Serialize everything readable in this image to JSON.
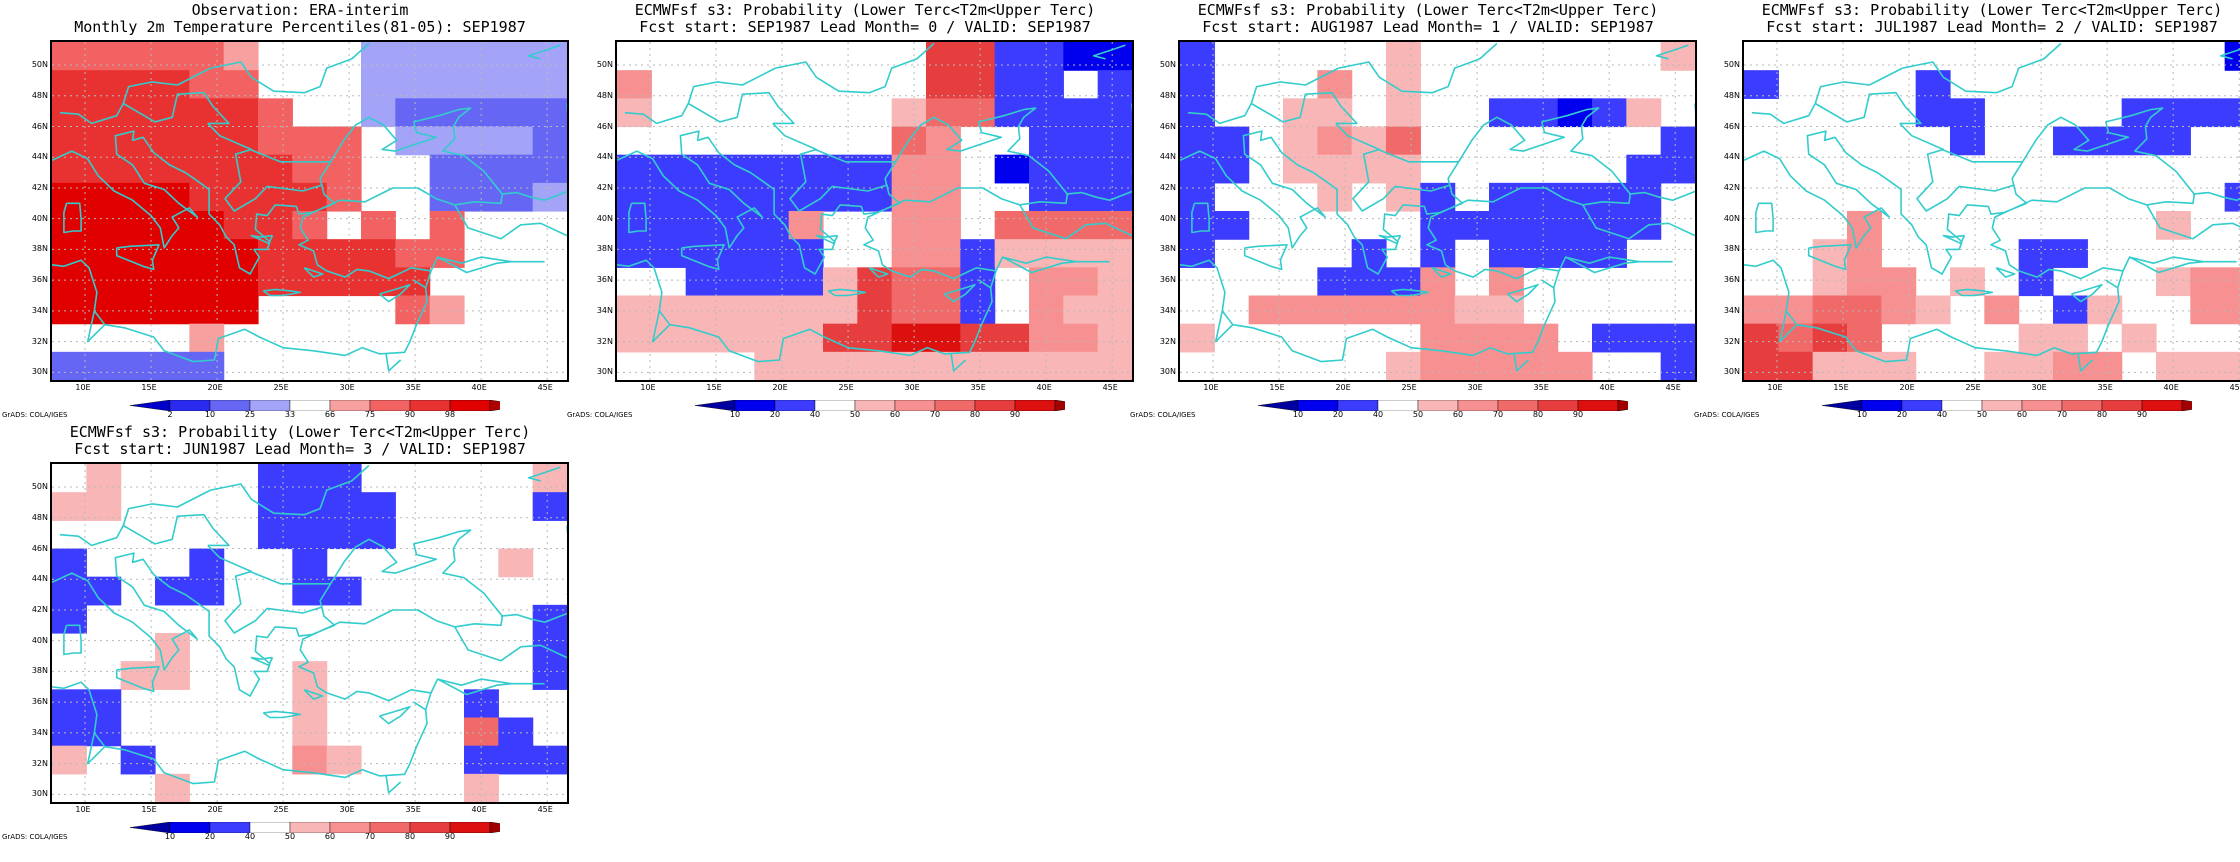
{
  "lon_labels": [
    "10E",
    "15E",
    "20E",
    "25E",
    "30E",
    "35E",
    "40E",
    "45E"
  ],
  "lat_labels": [
    "50N",
    "48N",
    "46N",
    "44N",
    "42N",
    "40N",
    "38N",
    "36N",
    "34N",
    "32N",
    "30N"
  ],
  "credit": "GrADS: COLA/IGES",
  "colors": {
    "coast": "#33cccc",
    "grid": "#b8b8b8",
    "obs_palette": {
      "1": "#2b2bf0",
      "2": "#6666f5",
      "3": "#a3a3f8",
      "4": "#ffffff",
      "5": "#f8a0a0",
      "6": "#f26262",
      "7": "#e83232",
      "8": "#e00000"
    },
    "prob_palette": {
      "0": "#0000ee",
      "1": "#3c3cff",
      "2": "#ffffff",
      "3": "#f9b6b6",
      "4": "#f79090",
      "5": "#f06a6a",
      "6": "#e63e3e",
      "7": "#dd1010"
    }
  },
  "panels": [
    {
      "id": "obs",
      "title_line1": "Observation: ERA-interim",
      "title_line2": "Monthly 2m Temperature Percentiles(81-05): SEP1987",
      "colorbar_labels": [
        "2",
        "10",
        "25",
        "33",
        "66",
        "75",
        "90",
        "98"
      ],
      "palette": "obs",
      "grid": [
        "666665444333333",
        "777766444333333",
        "777777644322222",
        "777777666433332",
        "777777766442222",
        "888877776442223",
        "888887764646444",
        "888888777766444",
        "888888777774444",
        "888888444465444",
        "444454444444444",
        "222224444444444"
      ]
    },
    {
      "id": "lead0",
      "title_line1": "ECMWFsf s3: Probability (Lower Terc<T2m<Upper Terc)",
      "title_line2": "Fcst start: SEP1987  Lead Month= 0 / VALID: SEP1987",
      "colorbar_labels": [
        "10",
        "20",
        "40",
        "50",
        "60",
        "70",
        "80",
        "90"
      ],
      "palette": "prob",
      "grid": [
        "222222222661100",
        "422222222661121",
        "322222223551111",
        "222222225422111",
        "111111114420111",
        "111111114422111",
        "111114224425555",
        "111111224413333",
        "221111365512443",
        "333333365512433",
        "333333667766443",
        "222233333333333"
      ]
    },
    {
      "id": "lead1",
      "title_line1": "ECMWFsf s3: Probability (Lower Terc<T2m<Upper Terc)",
      "title_line2": "Fcst start: AUG1987  Lead Month= 1 / VALID: SEP1987",
      "colorbar_labels": [
        "10",
        "20",
        "40",
        "50",
        "60",
        "70",
        "80",
        "90"
      ],
      "palette": "prob",
      "grid": [
        "122222322222223",
        "122242322222222",
        "122332322110132",
        "112343522222221",
        "112333322222211",
        "122232312111112",
        "112222211111112",
        "122221212111122",
        "222211142422222",
        "224444443322222",
        "322222244442111",
        "222222344444221"
      ]
    },
    {
      "id": "lead2",
      "title_line1": "ECMWFsf s3: Probability (Lower Terc<T2m<Upper Terc)",
      "title_line2": "Fcst start: JUL1987  Lead Month= 2 / VALID: SEP1987",
      "colorbar_labels": [
        "10",
        "20",
        "40",
        "50",
        "60",
        "70",
        "80",
        "90"
      ],
      "palette": "prob",
      "grid": [
        "222222222222220",
        "122221222222222",
        "222221122221111",
        "222222122111122",
        "222222222222222",
        "222222222222221",
        "222422222222322",
        "223422221122222",
        "223442321222344",
        "445543242132244",
        "656522223323222",
        "663332233442333"
      ]
    },
    {
      "id": "lead3",
      "title_line1": "ECMWFsf s3: Probability (Lower Terc<T2m<Upper Terc)",
      "title_line2": "Fcst start: JUN1987  Lead Month= 3 / VALID: SEP1987",
      "colorbar_labels": [
        "10",
        "20",
        "40",
        "50",
        "60",
        "70",
        "80",
        "90"
      ],
      "palette": "prob",
      "grid": [
        "232222111222223",
        "332222111122221",
        "222222111122222",
        "122212212222232",
        "112112211222222",
        "122222222222221",
        "222322222222221",
        "223322232222221",
        "112222232222122",
        "112222232222512",
        "321222243222111",
        "222322222222322"
      ]
    }
  ]
}
